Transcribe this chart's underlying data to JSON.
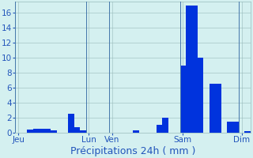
{
  "title": "",
  "xlabel": "Précipitations 24h ( mm )",
  "background_color": "#d4f0f0",
  "bar_color": "#0033dd",
  "grid_color": "#99bbbb",
  "ylim": [
    0,
    17.5
  ],
  "yticks": [
    0,
    2,
    4,
    6,
    8,
    10,
    12,
    14,
    16
  ],
  "n_bars": 40,
  "bar_values": [
    0.0,
    0.0,
    0.4,
    0.5,
    0.5,
    0.5,
    0.3,
    0.0,
    0.0,
    2.5,
    0.7,
    0.3,
    0.0,
    0.0,
    0.0,
    0.0,
    0.0,
    0.0,
    0.0,
    0.0,
    0.3,
    0.0,
    0.0,
    0.0,
    1.0,
    2.0,
    0.0,
    0.0,
    9.0,
    17.0,
    17.0,
    10.0,
    0.0,
    6.5,
    6.5,
    0.0,
    1.5,
    1.5,
    0.0,
    0.2
  ],
  "xtick_positions": [
    0,
    12,
    16,
    28,
    38
  ],
  "xtick_labels": [
    "Jeu",
    "Lun",
    "Ven",
    "Sam",
    "Dim"
  ],
  "vline_positions": [
    0,
    12,
    16,
    28,
    38
  ],
  "vline_color": "#4477aa",
  "xlabel_color": "#2255bb",
  "tick_color": "#2255bb",
  "xlabel_fontsize": 9,
  "tick_fontsize": 7.5
}
